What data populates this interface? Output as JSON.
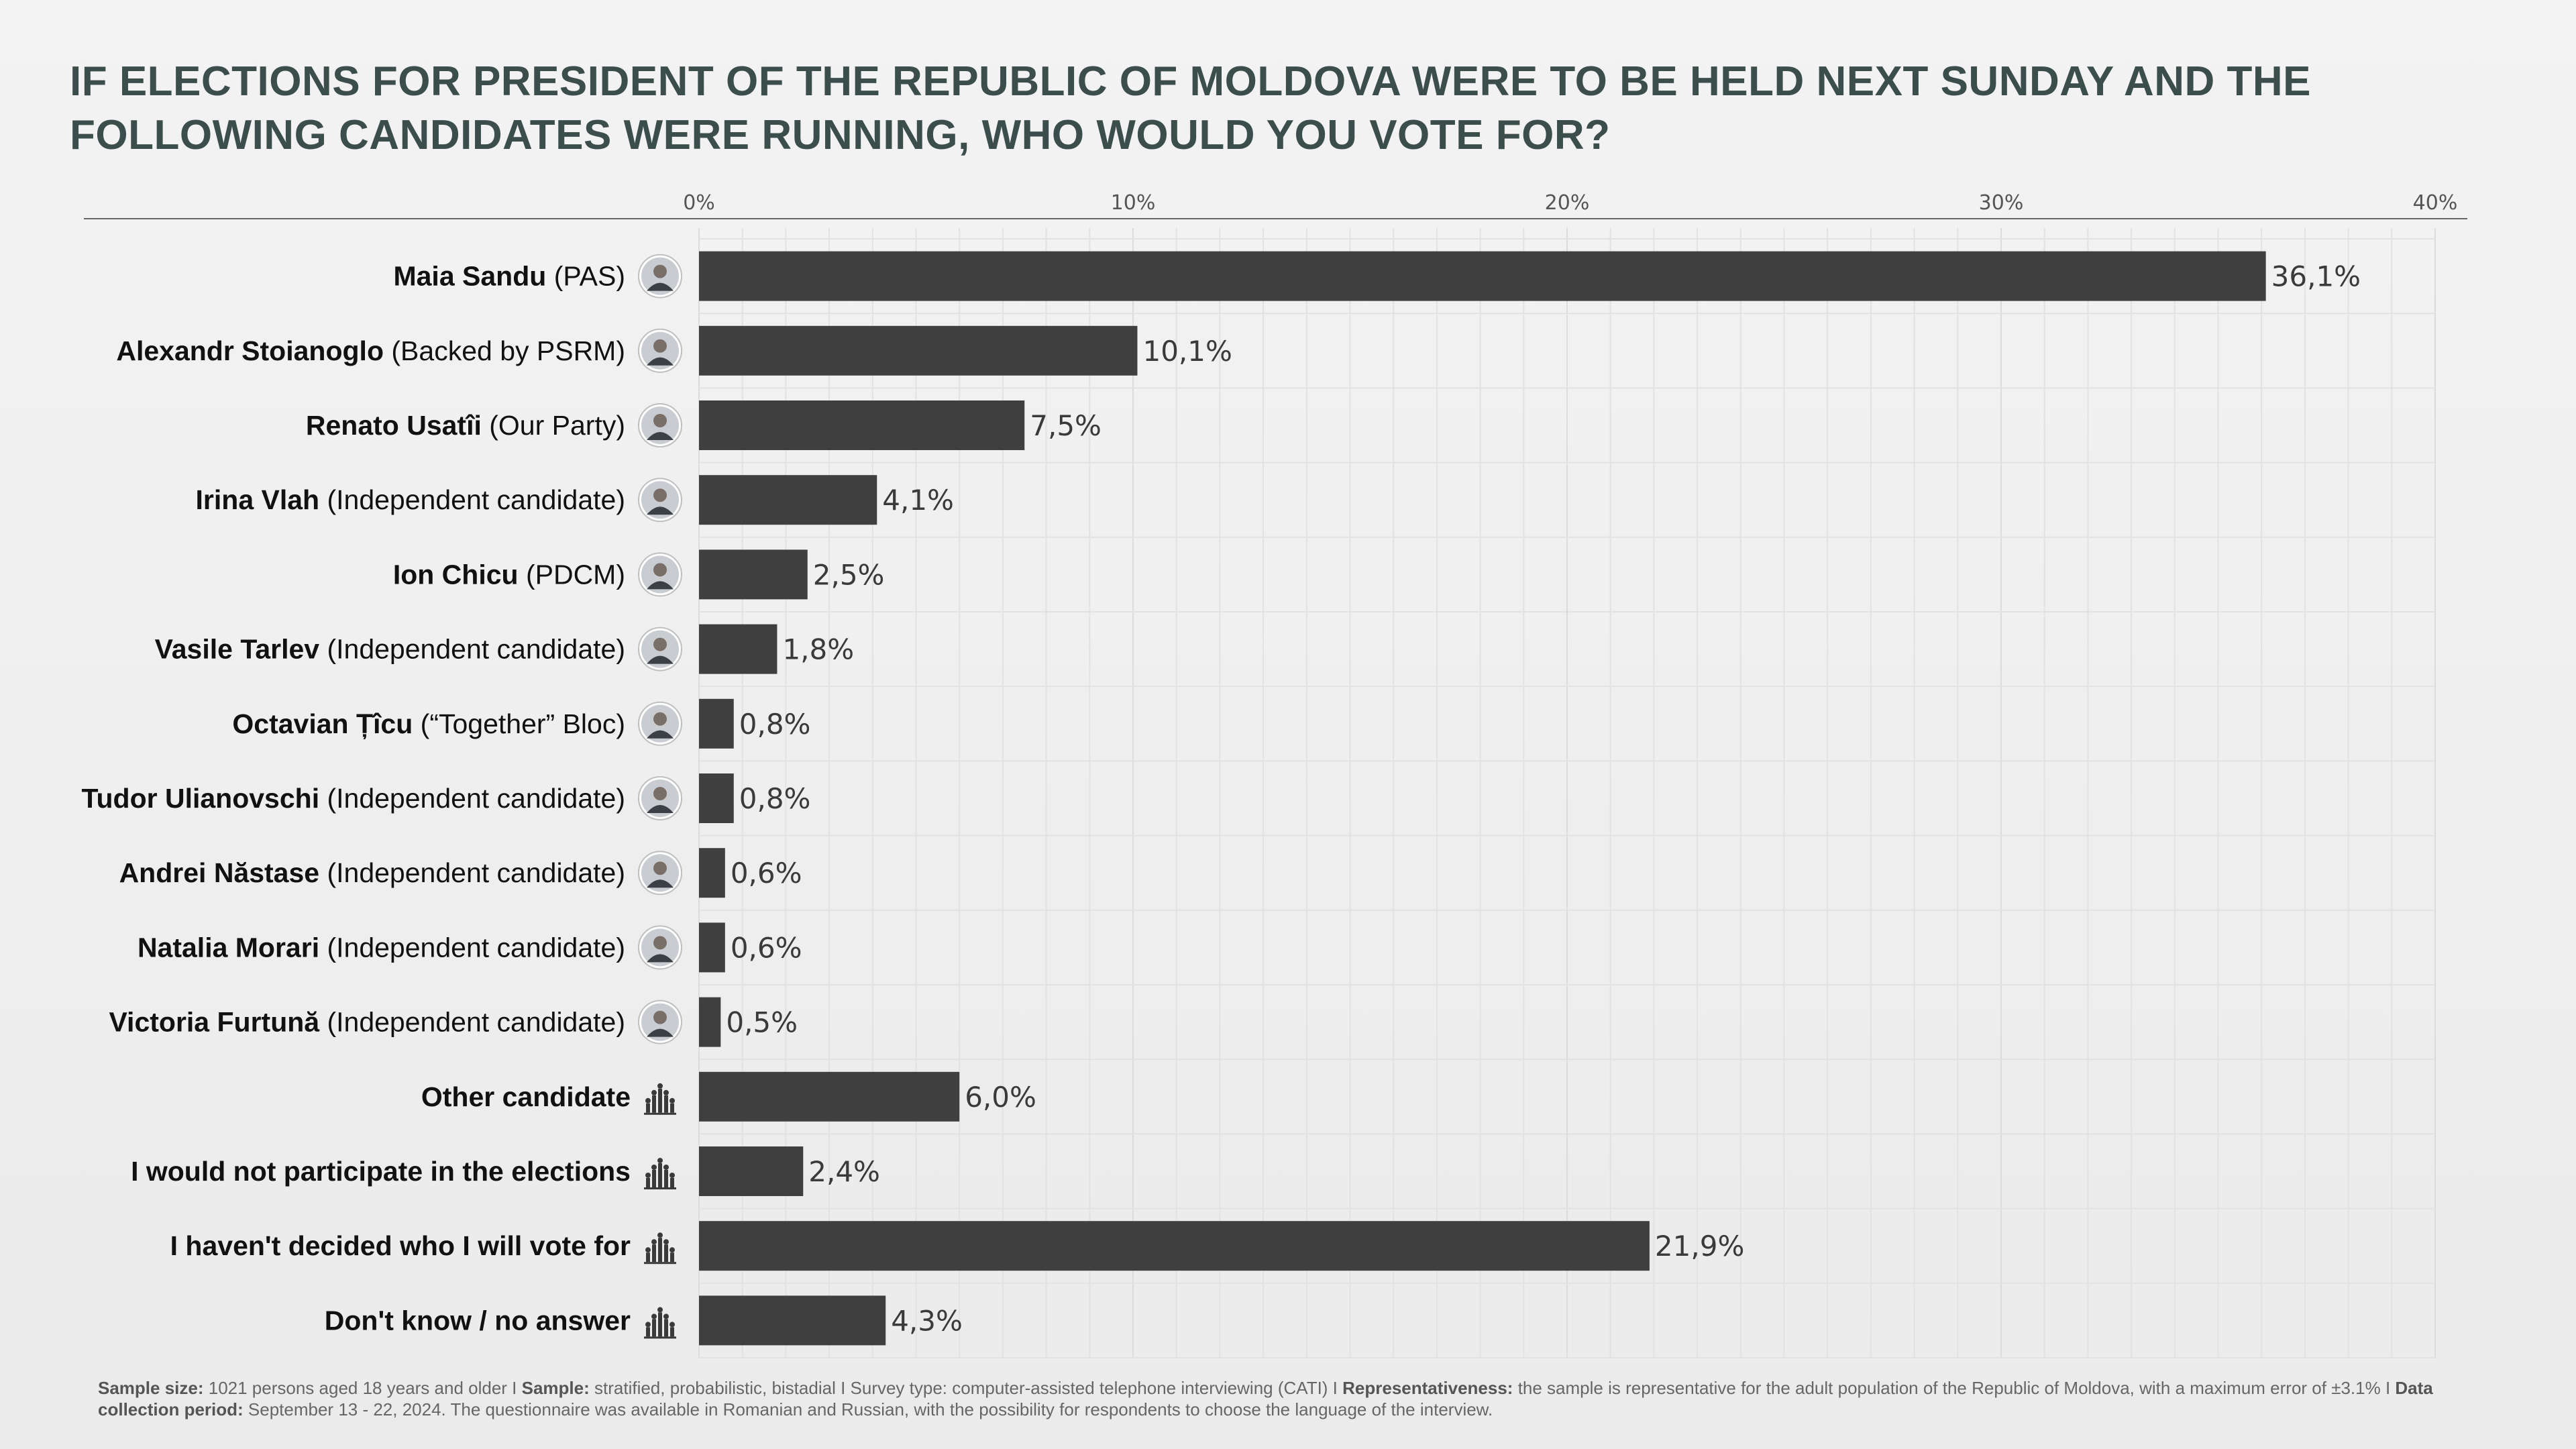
{
  "chart_data": {
    "type": "bar",
    "orientation": "horizontal",
    "title": "IF ELECTIONS FOR PRESIDENT OF THE REPUBLIC OF MOLDOVA WERE TO BE HELD NEXT SUNDAY AND THE FOLLOWING CANDIDATES WERE RUNNING, WHO WOULD YOU VOTE FOR?",
    "xlim": [
      0,
      40
    ],
    "x_ticks": [
      "0%",
      "10%",
      "20%",
      "30%",
      "40%"
    ],
    "grid": true,
    "categories": [
      {
        "name": "Maia Sandu",
        "affiliation": " (PAS)",
        "icon": "portrait-icon"
      },
      {
        "name": "Alexandr Stoianoglo",
        "affiliation": " (Backed by PSRM)",
        "icon": "portrait-icon"
      },
      {
        "name": "Renato Usatîi",
        "affiliation": " (Our Party)",
        "icon": "portrait-icon"
      },
      {
        "name": "Irina Vlah",
        "affiliation": " (Independent candidate)",
        "icon": "portrait-icon"
      },
      {
        "name": "Ion Chicu",
        "affiliation": " (PDCM)",
        "icon": "portrait-icon"
      },
      {
        "name": "Vasile Tarlev",
        "affiliation": " (Independent candidate)",
        "icon": "portrait-icon"
      },
      {
        "name": "Octavian Țîcu",
        "affiliation": " (“Together” Bloc)",
        "icon": "portrait-icon"
      },
      {
        "name": "Tudor Ulianovschi",
        "affiliation": " (Independent candidate)",
        "icon": "portrait-icon"
      },
      {
        "name": "Andrei Năstase",
        "affiliation": " (Independent candidate)",
        "icon": "portrait-icon"
      },
      {
        "name": "Natalia Morari",
        "affiliation": " (Independent candidate)",
        "icon": "portrait-icon"
      },
      {
        "name": "Victoria  Furtună",
        "affiliation": " (Independent candidate)",
        "icon": "portrait-icon"
      },
      {
        "name": "Other candidate",
        "affiliation": "",
        "icon": "crowd-icon"
      },
      {
        "name": "I would not participate in the elections",
        "affiliation": "",
        "icon": "crowd-icon"
      },
      {
        "name": "I haven't decided who I will vote for",
        "affiliation": "",
        "icon": "crowd-icon"
      },
      {
        "name": "Don't know / no answer",
        "affiliation": "",
        "icon": "crowd-icon"
      }
    ],
    "values": [
      36.1,
      10.1,
      7.5,
      4.1,
      2.5,
      1.8,
      0.8,
      0.8,
      0.6,
      0.6,
      0.5,
      6.0,
      2.4,
      21.9,
      4.3
    ],
    "value_labels": [
      "36,1%",
      "10,1%",
      "7,5%",
      "4,1%",
      "2,5%",
      "1,8%",
      "0,8%",
      "0,8%",
      "0,6%",
      "0,6%",
      "0,5%",
      "6,0%",
      "2,4%",
      "21,9%",
      "4,3%"
    ],
    "colors": {
      "bar": "#3f3f3f",
      "title": "#3c4e4c",
      "grid": "#e2e2e2",
      "axis": "#666666"
    }
  },
  "footer": {
    "sample_size_label": "Sample size:",
    "sample_size_text": " 1021 persons aged 18 years and older I ",
    "sample_label": "Sample:",
    "sample_text": " stratified, probabilistic, bistadial I Survey type: computer-assisted telephone interviewing (CATI) I ",
    "representativeness_label": "Representativeness:",
    "representativeness_text": " the sample is representative for the adult population of the Republic of Moldova, with a maximum error of ±3.1% I ",
    "period_label": "Data collection period:",
    "period_text": " September 13 - 22, 2024. The questionnaire was available in Romanian and Russian, with the possibility for respondents to choose the language of the interview."
  }
}
